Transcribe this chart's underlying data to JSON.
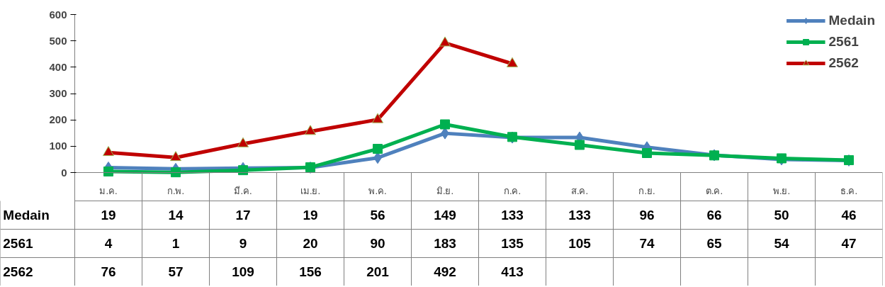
{
  "chart_data": {
    "type": "line",
    "categories": [
      "ม.ค.",
      "ก.พ.",
      "มี.ค.",
      "เม.ย.",
      "พ.ค.",
      "มิ.ย.",
      "ก.ค.",
      "ส.ค.",
      "ก.ย.",
      "ต.ค.",
      "พ.ย.",
      "ธ.ค."
    ],
    "series": [
      {
        "name": "Medain",
        "color": "#4f81bd",
        "marker": "diamond",
        "values": [
          19,
          14,
          17,
          19,
          56,
          149,
          133,
          133,
          96,
          66,
          50,
          46
        ]
      },
      {
        "name": "2561",
        "color": "#00b050",
        "marker": "square",
        "values": [
          4,
          1,
          9,
          20,
          90,
          183,
          135,
          105,
          74,
          65,
          54,
          47
        ]
      },
      {
        "name": "2562",
        "color": "#c00000",
        "marker": "triangle",
        "values": [
          76,
          57,
          109,
          156,
          201,
          492,
          413,
          null,
          null,
          null,
          null,
          null
        ]
      }
    ],
    "ylim": [
      0,
      600
    ],
    "yticks": [
      0,
      100,
      200,
      300,
      400,
      500,
      600
    ],
    "grid": false,
    "legend": "top right",
    "data_labels": true
  }
}
